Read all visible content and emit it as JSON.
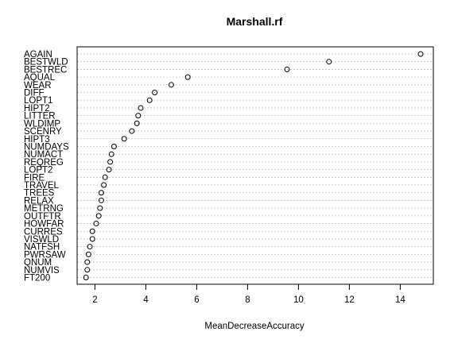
{
  "chart_data": {
    "type": "scatter",
    "title": "Marshall.rf",
    "xlabel": "MeanDecreaseAccuracy",
    "ylabel": "",
    "xlim": [
      1.3,
      15.3
    ],
    "xticks": [
      2,
      4,
      6,
      8,
      10,
      12,
      14
    ],
    "grid": "horizontal-dotted",
    "categories": [
      "AGAIN",
      "BESTWLD",
      "BESTREC",
      "AQUAL",
      "WEAR",
      "DIFF",
      "LOPT1",
      "HIPT2",
      "LITTER",
      "WLDIMP",
      "SCENRY",
      "HIPT3",
      "NUMDAYS",
      "NUMACT",
      "REQREG",
      "LOPT2",
      "FIRE",
      "TRAVEL",
      "TREES",
      "RELAX",
      "METRNG",
      "OUTFTR",
      "HOWFAR",
      "CURRES",
      "VISWLD",
      "NATFSH",
      "PWRSAW",
      "QNUM",
      "NUMVIS",
      "FT200"
    ],
    "values": [
      14.8,
      11.2,
      9.55,
      5.65,
      5.0,
      4.35,
      4.15,
      3.8,
      3.7,
      3.65,
      3.45,
      3.15,
      2.75,
      2.65,
      2.6,
      2.55,
      2.4,
      2.35,
      2.25,
      2.25,
      2.2,
      2.15,
      2.05,
      1.9,
      1.9,
      1.8,
      1.75,
      1.7,
      1.7,
      1.65
    ]
  }
}
